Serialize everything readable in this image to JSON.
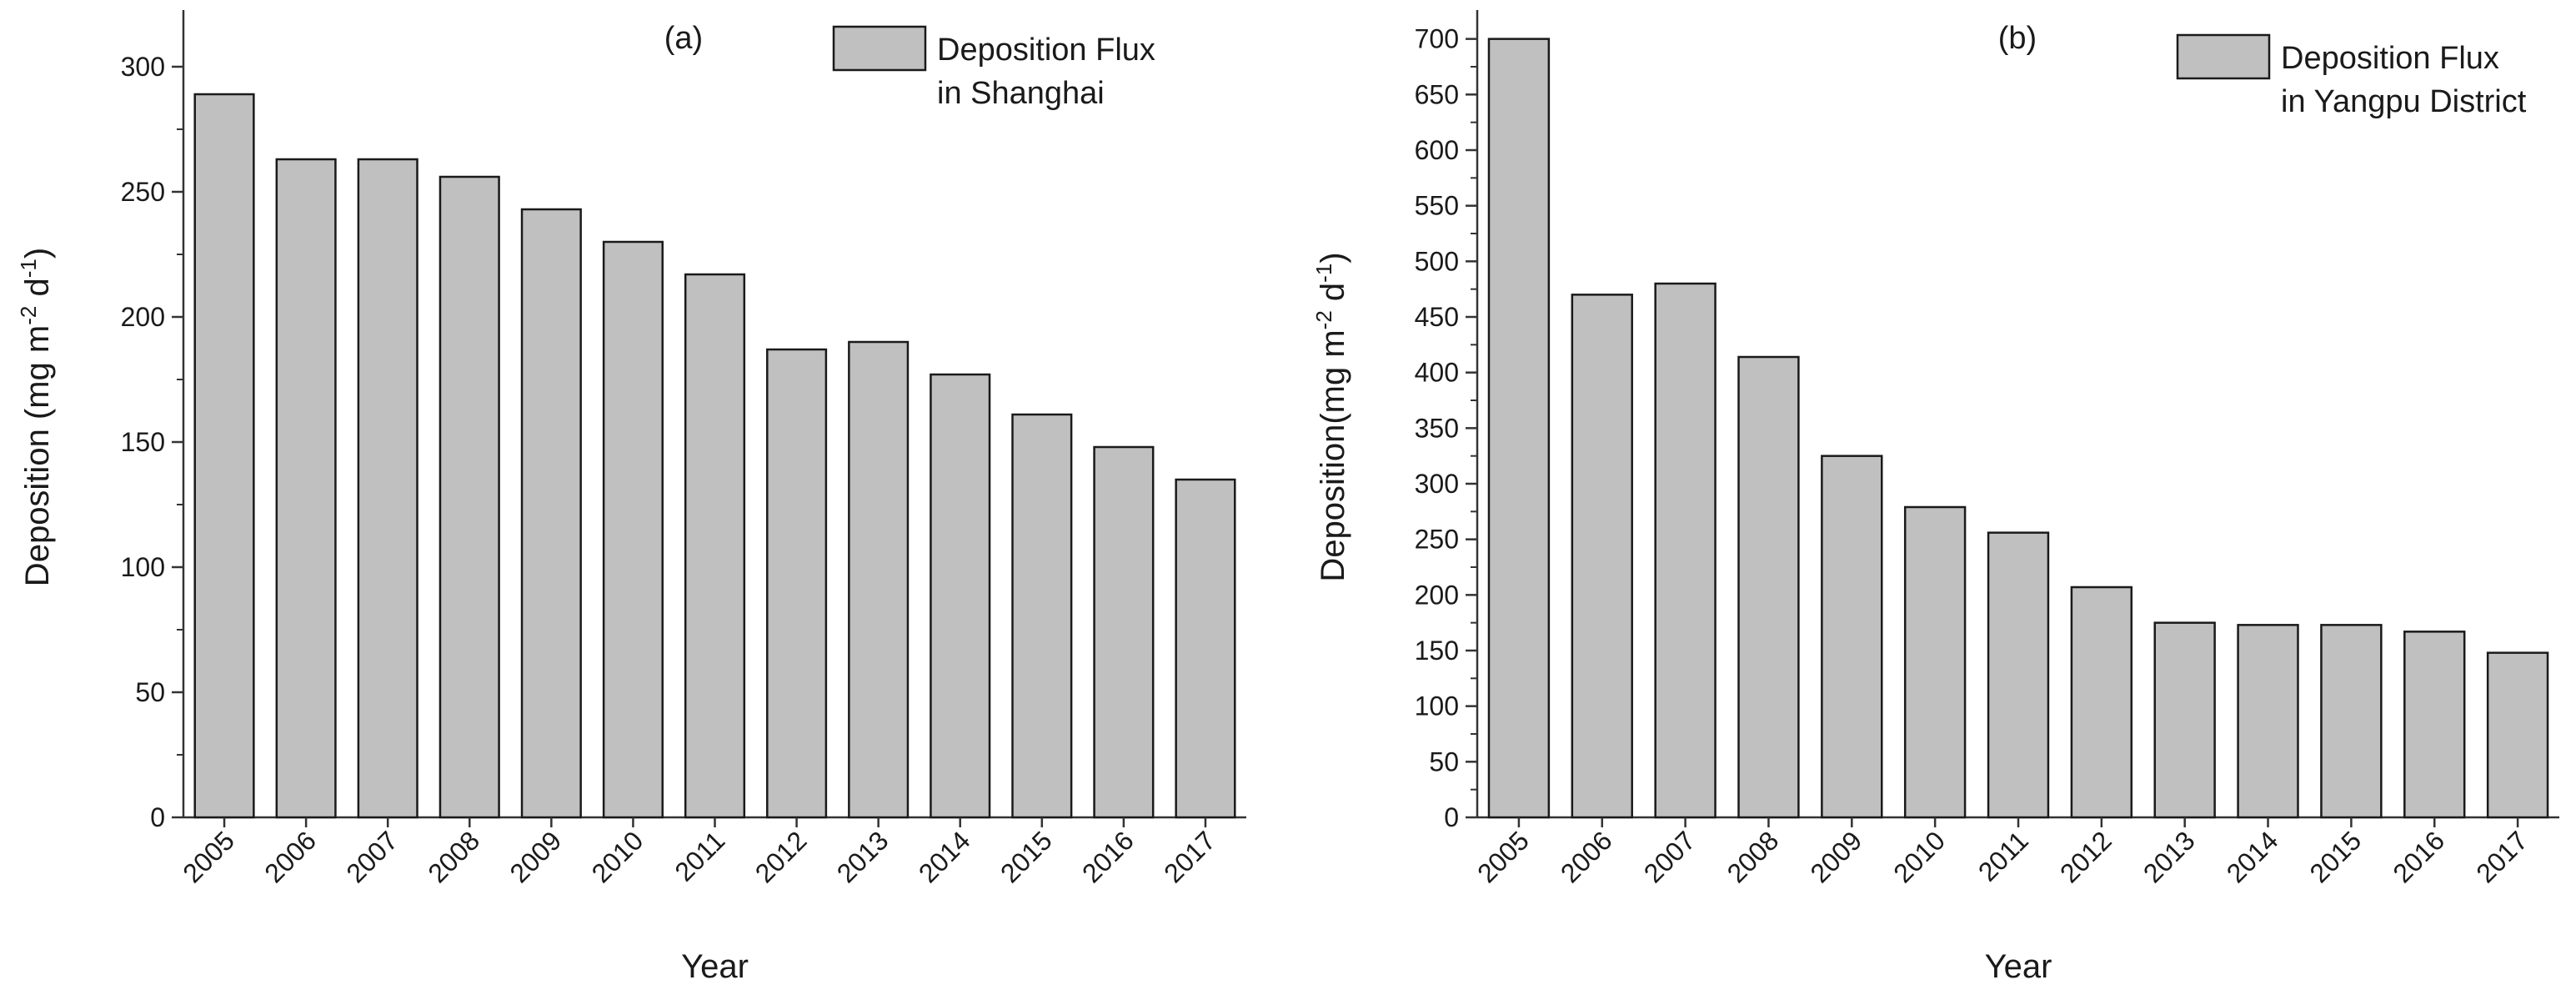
{
  "chart_data": [
    {
      "type": "bar",
      "panel_label": "(a)",
      "xlabel": "Year",
      "ylabel": "Deposition (mg m",
      "ylabel_sup1": "-2",
      "ylabel_mid": " d",
      "ylabel_sup2": "-1",
      "ylabel_end": ")",
      "ylim": [
        0,
        320
      ],
      "yticks": [
        0,
        50,
        100,
        150,
        200,
        250,
        300
      ],
      "categories": [
        "2005",
        "2006",
        "2007",
        "2008",
        "2009",
        "2010",
        "2011",
        "2012",
        "2013",
        "2014",
        "2015",
        "2016",
        "2017"
      ],
      "series": [
        {
          "name": "Deposition Flux in Shanghai",
          "legend_line1": "Deposition Flux",
          "legend_line2": "in Shanghai",
          "values": [
            289,
            263,
            263,
            256,
            243,
            230,
            217,
            187,
            190,
            177,
            161,
            148,
            135
          ]
        }
      ],
      "bar_color": "#c0c0c0",
      "legend": "top-right",
      "grid": false
    },
    {
      "type": "bar",
      "panel_label": "(b)",
      "xlabel": "Year",
      "ylabel": "Deposition(mg m",
      "ylabel_sup1": "-2",
      "ylabel_mid": " d",
      "ylabel_sup2": "-1",
      "ylabel_end": ")",
      "ylim": [
        0,
        720
      ],
      "yticks": [
        0,
        50,
        100,
        150,
        200,
        250,
        300,
        350,
        400,
        450,
        500,
        550,
        600,
        650,
        700
      ],
      "categories": [
        "2005",
        "2006",
        "2007",
        "2008",
        "2009",
        "2010",
        "2011",
        "2012",
        "2013",
        "2014",
        "2015",
        "2016",
        "2017"
      ],
      "series": [
        {
          "name": "Deposition Flux in Yangpu District",
          "legend_line1": "Deposition Flux",
          "legend_line2": "in Yangpu District",
          "values": [
            700,
            470,
            480,
            414,
            325,
            279,
            256,
            207,
            175,
            173,
            173,
            167,
            148
          ]
        }
      ],
      "bar_color": "#c0c0c0",
      "legend": "top-right",
      "grid": false
    }
  ]
}
